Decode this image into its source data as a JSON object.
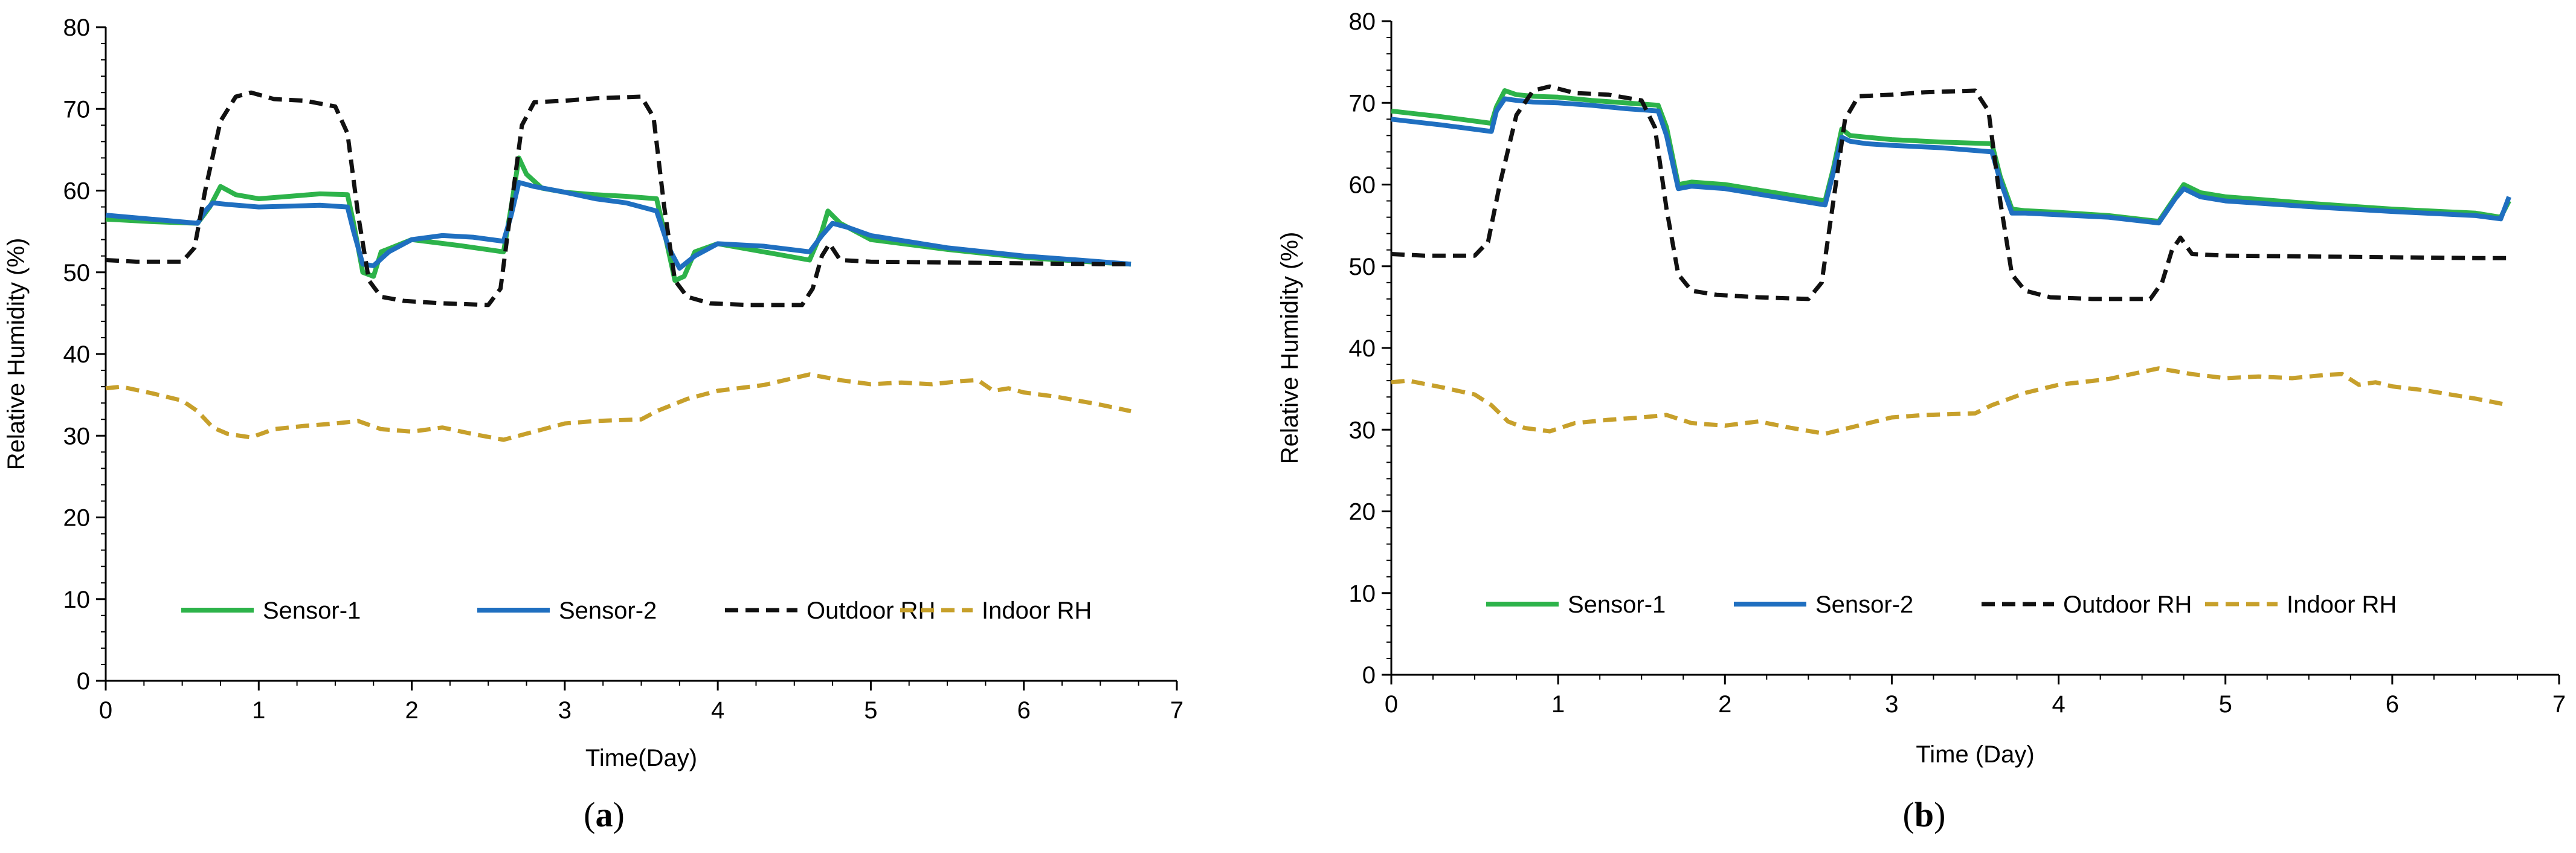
{
  "colors": {
    "sensor1": "#2db34a",
    "sensor2": "#1f6fc0",
    "outdoor": "#111111",
    "indoor": "#c7a02b",
    "axis": "#000000"
  },
  "chart_data": [
    {
      "type": "line",
      "panel": "a",
      "panel_label": "a",
      "xlabel": "Time(Day)",
      "ylabel": "Relative Humidity (%)",
      "xlim": [
        0,
        7
      ],
      "ylim": [
        0,
        80
      ],
      "xticks": [
        0,
        1,
        2,
        3,
        4,
        5,
        6,
        7
      ],
      "yticks": [
        0,
        10,
        20,
        30,
        40,
        50,
        60,
        70,
        80
      ],
      "legend_position": "lower-center",
      "series": [
        {
          "name": "Sensor-1",
          "key": "sensor1",
          "style": "solid",
          "x": [
            0,
            0.3,
            0.6,
            0.68,
            0.75,
            0.85,
            1.0,
            1.2,
            1.4,
            1.58,
            1.62,
            1.68,
            1.75,
            1.8,
            2.0,
            2.3,
            2.6,
            2.65,
            2.7,
            2.75,
            2.85,
            3.0,
            3.2,
            3.4,
            3.6,
            3.65,
            3.72,
            3.78,
            3.85,
            4.0,
            4.3,
            4.6,
            4.68,
            4.72,
            4.8,
            5.0,
            5.5,
            6.0,
            6.5,
            6.7
          ],
          "y": [
            56.5,
            56.2,
            56,
            58,
            60.5,
            59.5,
            59,
            59.3,
            59.6,
            59.5,
            56,
            50,
            49.5,
            52.5,
            54,
            53.3,
            52.5,
            58,
            64,
            62,
            60.3,
            59.8,
            59.5,
            59.3,
            59,
            55,
            49,
            49.5,
            52.5,
            53.5,
            52.5,
            51.5,
            55,
            57.5,
            56,
            54,
            52.8,
            51.8,
            51.2,
            51
          ]
        },
        {
          "name": "Sensor-2",
          "key": "sensor2",
          "style": "solid",
          "x": [
            0,
            0.3,
            0.6,
            0.65,
            0.7,
            0.8,
            1.0,
            1.2,
            1.4,
            1.58,
            1.62,
            1.68,
            1.75,
            1.85,
            2.0,
            2.2,
            2.4,
            2.6,
            2.65,
            2.7,
            2.8,
            3.0,
            3.2,
            3.4,
            3.6,
            3.68,
            3.75,
            3.85,
            4.0,
            4.3,
            4.6,
            4.68,
            4.75,
            4.85,
            5.0,
            5.5,
            6.0,
            6.5,
            6.7
          ],
          "y": [
            57,
            56.5,
            56,
            57.5,
            58.5,
            58.3,
            58,
            58.1,
            58.2,
            58,
            55,
            51,
            50.8,
            52.5,
            54,
            54.5,
            54.3,
            53.8,
            57,
            61,
            60.5,
            59.8,
            59,
            58.5,
            57.5,
            53,
            50.5,
            52,
            53.5,
            53.2,
            52.5,
            54.5,
            56,
            55.5,
            54.5,
            53,
            52,
            51.3,
            51
          ]
        },
        {
          "name": "Outdoor RH",
          "key": "outdoor",
          "style": "dash",
          "x": [
            0,
            0.2,
            0.5,
            0.58,
            0.65,
            0.75,
            0.85,
            0.95,
            1.1,
            1.3,
            1.5,
            1.58,
            1.65,
            1.72,
            1.8,
            1.95,
            2.2,
            2.5,
            2.58,
            2.65,
            2.72,
            2.8,
            3.0,
            3.2,
            3.5,
            3.58,
            3.65,
            3.72,
            3.8,
            3.95,
            4.2,
            4.55,
            4.62,
            4.68,
            4.73,
            4.8,
            5.0,
            5.5,
            6.0,
            6.5,
            6.7
          ],
          "y": [
            51.5,
            51.3,
            51.3,
            53,
            60,
            68.5,
            71.5,
            72,
            71.2,
            71,
            70.3,
            67,
            57,
            49,
            47,
            46.5,
            46.2,
            46,
            48,
            58,
            68,
            70.8,
            71,
            71.3,
            71.5,
            69,
            58,
            49,
            47,
            46.2,
            46,
            46,
            48,
            52,
            53.5,
            51.5,
            51.3,
            51.2,
            51.1,
            51,
            51
          ]
        },
        {
          "name": "Indoor RH",
          "key": "indoor",
          "style": "dash",
          "x": [
            0,
            0.1,
            0.3,
            0.5,
            0.6,
            0.7,
            0.8,
            0.95,
            1.1,
            1.3,
            1.5,
            1.65,
            1.8,
            2.0,
            2.2,
            2.4,
            2.6,
            2.8,
            3.0,
            3.2,
            3.5,
            3.6,
            3.8,
            4.0,
            4.3,
            4.6,
            4.8,
            5.0,
            5.2,
            5.4,
            5.6,
            5.7,
            5.8,
            5.9,
            6.0,
            6.2,
            6.5,
            6.7
          ],
          "y": [
            35.8,
            36,
            35.2,
            34.3,
            33,
            31,
            30.2,
            29.8,
            30.8,
            31.2,
            31.5,
            31.8,
            30.8,
            30.5,
            31,
            30.2,
            29.5,
            30.5,
            31.5,
            31.8,
            32,
            33,
            34.5,
            35.5,
            36.2,
            37.5,
            36.8,
            36.3,
            36.5,
            36.3,
            36.7,
            36.8,
            35.5,
            35.8,
            35.3,
            34.8,
            33.8,
            33
          ]
        }
      ]
    },
    {
      "type": "line",
      "panel": "b",
      "panel_label": "b",
      "xlabel": "Time (Day)",
      "ylabel": "Relative Humidity (%)",
      "xlim": [
        0,
        7
      ],
      "ylim": [
        0,
        80
      ],
      "xticks": [
        0,
        1,
        2,
        3,
        4,
        5,
        6,
        7
      ],
      "yticks": [
        0,
        10,
        20,
        30,
        40,
        50,
        60,
        70,
        80
      ],
      "legend_position": "lower-center",
      "series": [
        {
          "name": "Sensor-1",
          "key": "sensor1",
          "style": "solid",
          "x": [
            0,
            0.3,
            0.6,
            0.63,
            0.68,
            0.75,
            0.85,
            1.0,
            1.2,
            1.4,
            1.6,
            1.65,
            1.72,
            1.8,
            2.0,
            2.3,
            2.6,
            2.65,
            2.7,
            2.75,
            2.85,
            3.0,
            3.3,
            3.6,
            3.65,
            3.72,
            3.8,
            4.0,
            4.3,
            4.6,
            4.7,
            4.75,
            4.85,
            5.0,
            5.5,
            6.0,
            6.5,
            6.65,
            6.7
          ],
          "y": [
            69,
            68.3,
            67.5,
            69.5,
            71.5,
            71,
            70.8,
            70.7,
            70.3,
            70,
            69.7,
            67,
            60,
            60.3,
            60,
            59,
            58,
            62,
            66.8,
            66,
            65.8,
            65.5,
            65.2,
            65,
            61,
            57,
            56.8,
            56.6,
            56.2,
            55.5,
            58.5,
            60,
            59,
            58.5,
            57.7,
            57,
            56.5,
            56,
            58
          ]
        },
        {
          "name": "Sensor-2",
          "key": "sensor2",
          "style": "solid",
          "x": [
            0,
            0.3,
            0.6,
            0.63,
            0.68,
            0.75,
            0.85,
            1.0,
            1.2,
            1.4,
            1.6,
            1.65,
            1.72,
            1.8,
            2.0,
            2.3,
            2.6,
            2.65,
            2.7,
            2.75,
            2.85,
            3.0,
            3.3,
            3.6,
            3.65,
            3.72,
            3.8,
            4.0,
            4.3,
            4.6,
            4.7,
            4.75,
            4.85,
            5.0,
            5.5,
            6.0,
            6.5,
            6.65,
            6.7
          ],
          "y": [
            68,
            67.3,
            66.5,
            69,
            70.5,
            70.3,
            70.1,
            70,
            69.7,
            69.3,
            69,
            66,
            59.5,
            59.8,
            59.5,
            58.5,
            57.5,
            61.5,
            65.8,
            65.3,
            65,
            64.8,
            64.5,
            64,
            60.5,
            56.5,
            56.5,
            56.3,
            56,
            55.3,
            58.3,
            59.5,
            58.5,
            58,
            57.3,
            56.7,
            56.2,
            55.8,
            58.5
          ]
        },
        {
          "name": "Outdoor RH",
          "key": "outdoor",
          "style": "dash",
          "x": [
            0,
            0.2,
            0.5,
            0.58,
            0.65,
            0.75,
            0.85,
            0.95,
            1.1,
            1.3,
            1.5,
            1.58,
            1.65,
            1.72,
            1.8,
            1.95,
            2.2,
            2.5,
            2.58,
            2.65,
            2.72,
            2.8,
            3.0,
            3.2,
            3.5,
            3.58,
            3.65,
            3.72,
            3.8,
            3.95,
            4.2,
            4.55,
            4.62,
            4.68,
            4.73,
            4.8,
            5.0,
            5.5,
            6.0,
            6.5,
            6.7
          ],
          "y": [
            51.5,
            51.3,
            51.3,
            53,
            60,
            68.5,
            71.5,
            72,
            71.2,
            71,
            70.3,
            67,
            57,
            49,
            47,
            46.5,
            46.2,
            46,
            48,
            58,
            68,
            70.8,
            71,
            71.3,
            71.5,
            69,
            58,
            49,
            47,
            46.2,
            46,
            46,
            48,
            52,
            53.5,
            51.5,
            51.3,
            51.2,
            51.1,
            51,
            51
          ]
        },
        {
          "name": "Indoor RH",
          "key": "indoor",
          "style": "dash",
          "x": [
            0,
            0.1,
            0.3,
            0.5,
            0.6,
            0.7,
            0.8,
            0.95,
            1.1,
            1.3,
            1.5,
            1.65,
            1.8,
            2.0,
            2.2,
            2.4,
            2.6,
            2.8,
            3.0,
            3.2,
            3.5,
            3.6,
            3.8,
            4.0,
            4.3,
            4.6,
            4.8,
            5.0,
            5.2,
            5.4,
            5.6,
            5.7,
            5.8,
            5.9,
            6.0,
            6.2,
            6.5,
            6.7
          ],
          "y": [
            35.8,
            36,
            35.2,
            34.3,
            33,
            31,
            30.2,
            29.8,
            30.8,
            31.2,
            31.5,
            31.8,
            30.8,
            30.5,
            31,
            30.2,
            29.5,
            30.5,
            31.5,
            31.8,
            32,
            33,
            34.5,
            35.5,
            36.2,
            37.5,
            36.8,
            36.3,
            36.5,
            36.3,
            36.7,
            36.8,
            35.5,
            35.8,
            35.3,
            34.8,
            33.8,
            33
          ]
        }
      ]
    }
  ]
}
